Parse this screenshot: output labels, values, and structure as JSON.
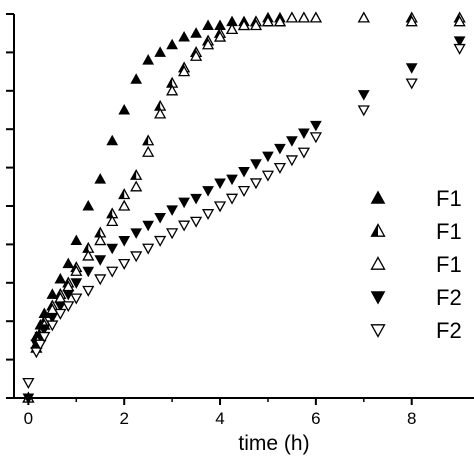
{
  "chart_data": {
    "type": "scatter",
    "title": "",
    "xlabel": "time  (h)",
    "ylabel": "",
    "xlim": [
      -0.3,
      9.3
    ],
    "ylim": [
      0,
      100
    ],
    "x_ticks": [
      0,
      2,
      4,
      6,
      8
    ],
    "x_tick_labels": [
      "0",
      "2",
      "4",
      "6",
      "8"
    ],
    "y_ticks": [
      0,
      10,
      20,
      30,
      40,
      50,
      60,
      70,
      80,
      90,
      100
    ],
    "grid": false,
    "legend_position": "right",
    "series": [
      {
        "name": "F1",
        "marker": "triangle-up-filled",
        "x": [
          0,
          0.167,
          0.25,
          0.333,
          0.5,
          0.667,
          0.833,
          1,
          1.25,
          1.5,
          1.75,
          2,
          2.25,
          2.5,
          2.75,
          3,
          3.25,
          3.5,
          3.75,
          4,
          4.25,
          4.5,
          4.75,
          5,
          5.25,
          5.5,
          5.75,
          6,
          7,
          8,
          9
        ],
        "y": [
          0,
          16,
          19,
          22,
          27,
          31,
          35,
          41,
          50,
          57,
          67,
          75,
          83,
          88,
          90,
          92,
          94,
          95,
          97,
          97,
          98,
          98,
          98,
          99,
          99,
          99,
          99,
          99,
          99,
          99,
          99
        ]
      },
      {
        "name": "F1",
        "marker": "triangle-up-half",
        "x": [
          0,
          0.167,
          0.25,
          0.333,
          0.5,
          0.667,
          0.833,
          1,
          1.25,
          1.5,
          1.75,
          2,
          2.25,
          2.5,
          2.75,
          3,
          3.25,
          3.5,
          3.75,
          4,
          4.25,
          4.5,
          4.75,
          5,
          5.25,
          5.5,
          5.75,
          6,
          7,
          8,
          9
        ],
        "y": [
          0,
          14,
          17,
          20,
          24,
          27,
          30,
          34,
          39,
          43,
          48,
          53,
          58,
          67,
          76,
          82,
          86,
          90,
          93,
          95,
          96,
          97,
          98,
          98,
          98,
          99,
          99,
          99,
          99,
          99,
          99
        ]
      },
      {
        "name": "F1",
        "marker": "triangle-up-open",
        "x": [
          0,
          0.167,
          0.25,
          0.333,
          0.5,
          0.667,
          0.833,
          1,
          1.25,
          1.5,
          1.75,
          2,
          2.25,
          2.5,
          2.75,
          3,
          3.25,
          3.5,
          3.75,
          4,
          4.25,
          4.5,
          4.75,
          5,
          5.25,
          5.5,
          5.75,
          6,
          7,
          8,
          9
        ],
        "y": [
          0,
          13,
          16,
          19,
          23,
          26,
          29,
          33,
          37,
          41,
          46,
          50,
          55,
          64,
          74,
          80,
          85,
          89,
          92,
          94,
          96,
          97,
          97,
          98,
          98,
          99,
          99,
          99,
          99,
          98,
          98
        ]
      },
      {
        "name": "F2",
        "marker": "triangle-down-filled",
        "x": [
          0,
          0.167,
          0.25,
          0.333,
          0.5,
          0.667,
          0.833,
          1,
          1.25,
          1.5,
          1.75,
          2,
          2.25,
          2.5,
          2.75,
          3,
          3.25,
          3.5,
          3.75,
          4,
          4.25,
          4.5,
          4.75,
          5,
          5.25,
          5.5,
          5.75,
          6,
          7,
          8,
          9
        ],
        "y": [
          0,
          14,
          16,
          18,
          21,
          24,
          27,
          30,
          33,
          36,
          39,
          41,
          43,
          45,
          47,
          49,
          51,
          52,
          54,
          56,
          57,
          59,
          61,
          63,
          65,
          67,
          69,
          71,
          79,
          86,
          93
        ]
      },
      {
        "name": "F2",
        "marker": "triangle-down-open",
        "x": [
          0,
          0.167,
          0.25,
          0.333,
          0.5,
          0.667,
          0.833,
          1,
          1.25,
          1.5,
          1.75,
          2,
          2.25,
          2.5,
          2.75,
          3,
          3.25,
          3.5,
          3.75,
          4,
          4.25,
          4.5,
          4.75,
          5,
          5.25,
          5.5,
          5.75,
          6,
          7,
          8,
          9
        ],
        "y": [
          4,
          12,
          14,
          16,
          19,
          22,
          24,
          26,
          28,
          31,
          33,
          35,
          37,
          39,
          41,
          43,
          45,
          46,
          48,
          50,
          52,
          54,
          56,
          58,
          60,
          62,
          64,
          68,
          75,
          82,
          91
        ]
      }
    ]
  }
}
